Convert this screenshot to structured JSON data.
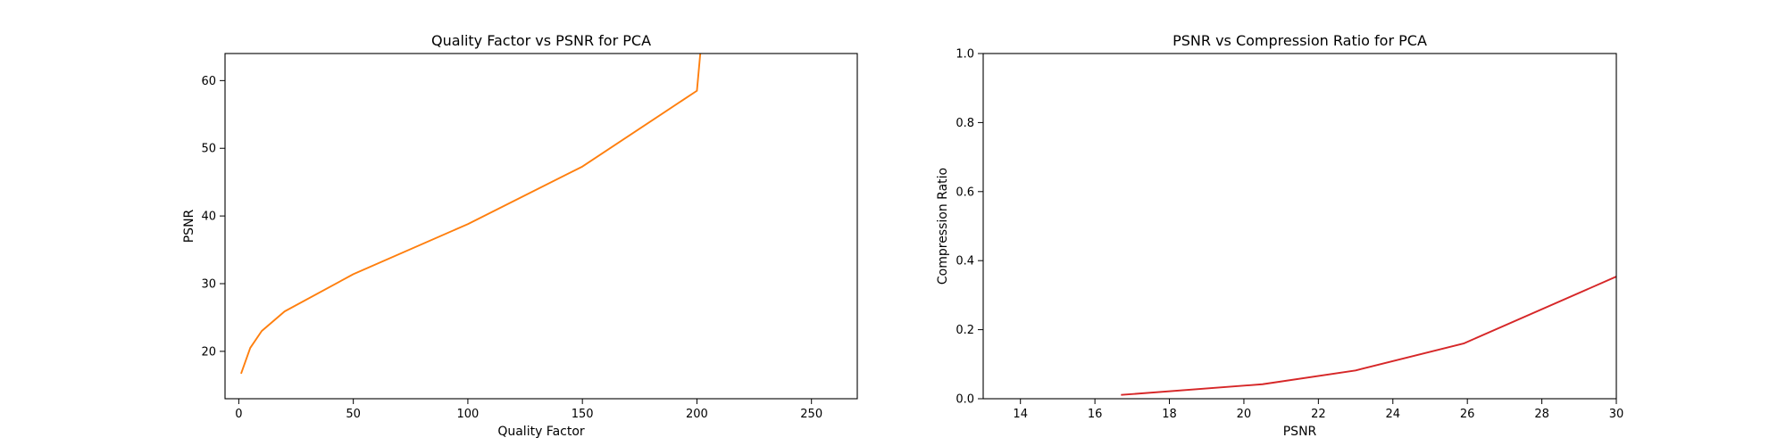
{
  "chart_data": [
    {
      "type": "line",
      "title": "Quality Factor vs PSNR for PCA",
      "xlabel": "Quality Factor",
      "ylabel": "PSNR",
      "xlim": [
        -6,
        270
      ],
      "ylim": [
        13,
        64
      ],
      "xticks": [
        0,
        50,
        100,
        150,
        200,
        250
      ],
      "yticks": [
        20,
        30,
        40,
        50,
        60
      ],
      "grid": false,
      "color": "#ff7f0e",
      "series": [
        {
          "x": [
            1,
            5,
            10,
            20,
            50,
            100,
            150,
            200,
            202
          ],
          "y": [
            16.7,
            20.5,
            23.0,
            25.9,
            31.4,
            38.8,
            47.3,
            58.5,
            66.0
          ]
        }
      ]
    },
    {
      "type": "line",
      "title": "PSNR vs Compression Ratio for PCA",
      "xlabel": "PSNR",
      "ylabel": "Compression Ratio",
      "xlim": [
        13,
        30
      ],
      "ylim": [
        0.0,
        1.0
      ],
      "xticks": [
        14,
        16,
        18,
        20,
        22,
        24,
        26,
        28,
        30
      ],
      "yticks": [
        0.0,
        0.2,
        0.4,
        0.6,
        0.8,
        1.0
      ],
      "grid": false,
      "color": "#d62728",
      "series": [
        {
          "x": [
            16.7,
            20.5,
            23.0,
            25.9,
            31.4
          ],
          "y": [
            0.011,
            0.042,
            0.082,
            0.16,
            0.42
          ]
        }
      ]
    }
  ]
}
